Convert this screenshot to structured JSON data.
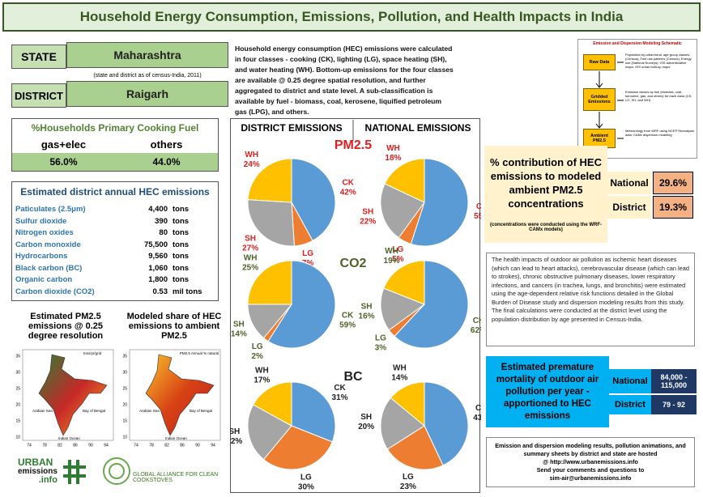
{
  "header": {
    "title": "Household Energy Consumption, Emissions, Pollution, and Health Impacts in India"
  },
  "location": {
    "state_label": "STATE",
    "state": "Maharashtra",
    "note": "(state and district as of census-India, 2011)",
    "district_label": "DISTRICT",
    "district": "Raigarh"
  },
  "description": "Household energy consumption (HEC) emissions were calculated in four classes - cooking (CK), lighting (LG), space heating (SH), and water heating (WH). Bottom-up emissions for the four classes  are available @ 0.25 degree spatial resolution, and further aggregated to district and state level. A sub-classification is available by fuel - biomass, coal, kerosene, liquified petroleum gas (LPG), and others.",
  "schematic": {
    "title": "Emission and Dispersion Modeling Schematic",
    "boxes": [
      "Raw Data",
      "Gridded Emissions",
      "Ambient PM2.5"
    ],
    "notes": [
      "Population by urban/rural, age group classes (Census); Fuel use patterns (Census); Energy use (National Surveys); GIS administrative maps; GIS urban built-up maps",
      "Emission factors by fuel (biomass, coal, kerosene, gas, and others) for each class (CK, LG, SH, and WH)",
      "Meteorology from WRF using NCEP Reanalysis data; CAMx dispersion modeling"
    ]
  },
  "cooking_fuel": {
    "title": "%Households Primary Cooking Fuel",
    "headers": [
      "gas+elec",
      "others"
    ],
    "values": [
      "56.0%",
      "44.0%"
    ]
  },
  "emissions": {
    "title": "Estimated district annual HEC emissions",
    "rows": [
      [
        "Paticulates (2.5μm)",
        "4,400",
        "tons"
      ],
      [
        "Sulfur dioxide",
        "390",
        "tons"
      ],
      [
        "Nitrogen oxides",
        "80",
        "tons"
      ],
      [
        "Carbon monoxide",
        "75,500",
        "tons"
      ],
      [
        "Hydrocarbons",
        "9,560",
        "tons"
      ],
      [
        "Black carbon (BC)",
        "1,060",
        "tons"
      ],
      [
        "Organic carbon",
        "1,800",
        "tons"
      ],
      [
        "Carbon dioxide (CO2)",
        "0.53",
        "mil tons"
      ]
    ]
  },
  "maps": {
    "pm_title": "Estimated PM2.5 emissions @ 0.25 degree resolution",
    "share_title": "Modeled share of HEC emissions to ambient PM2.5",
    "pm_unit": "tons/yr/grid",
    "share_unit": "PM2.5 Annual % natural",
    "seas": [
      "Arabian Sea",
      "Bay of Bengal",
      "Indian Ocean"
    ],
    "xticks": [
      "74",
      "78",
      "82",
      "86",
      "90",
      "94"
    ],
    "yticks": [
      "35",
      "30",
      "25",
      "20",
      "15",
      "10"
    ]
  },
  "logos": {
    "urban": "URBAN",
    "emissions": "emissions",
    ".info": ".info",
    "gacc": "GLOBAL ALLIANCE FOR CLEAN COOKSTOVES"
  },
  "pie_panel": {
    "district_header": "DISTRICT EMISSIONS",
    "national_header": "NATIONAL EMISSIONS",
    "rows": [
      "PM2.5",
      "CO2",
      "BC"
    ]
  },
  "chart_data": [
    {
      "type": "pie",
      "categories": [
        "CK",
        "LG",
        "SH",
        "WH"
      ],
      "values": [
        42,
        7,
        27,
        24
      ],
      "value_labels": [
        "42%",
        "7%",
        "27%",
        "24%"
      ],
      "colors": [
        "#5b9bd5",
        "#ed7d31",
        "#a5a5a5",
        "#ffc000"
      ],
      "label_color": "#e02020"
    },
    {
      "type": "pie",
      "categories": [
        "CK",
        "LG",
        "SH",
        "WH"
      ],
      "values": [
        55,
        5,
        22,
        18
      ],
      "value_labels": [
        "55%",
        "5%",
        "22%",
        "18%"
      ],
      "colors": [
        "#5b9bd5",
        "#ed7d31",
        "#a5a5a5",
        "#ffc000"
      ],
      "label_color": "#e02020"
    },
    {
      "type": "pie",
      "categories": [
        "CK",
        "LG",
        "SH",
        "WH"
      ],
      "values": [
        59,
        2,
        14,
        25
      ],
      "value_labels": [
        "59%",
        "2%",
        "14%",
        "25%"
      ],
      "colors": [
        "#5b9bd5",
        "#ed7d31",
        "#a5a5a5",
        "#ffc000"
      ],
      "label_color": "#4f6228"
    },
    {
      "type": "pie",
      "categories": [
        "CK",
        "LG",
        "SH",
        "WH"
      ],
      "values": [
        62,
        3,
        16,
        19
      ],
      "value_labels": [
        "62%",
        "3%",
        "16%",
        "19%"
      ],
      "colors": [
        "#5b9bd5",
        "#ed7d31",
        "#a5a5a5",
        "#ffc000"
      ],
      "label_color": "#4f6228"
    },
    {
      "type": "pie",
      "categories": [
        "CK",
        "LG",
        "SH",
        "WH"
      ],
      "values": [
        31,
        30,
        22,
        17
      ],
      "value_labels": [
        "31%",
        "30%",
        "22%",
        "17%"
      ],
      "colors": [
        "#5b9bd5",
        "#ed7d31",
        "#a5a5a5",
        "#ffc000"
      ],
      "label_color": "#222222"
    },
    {
      "type": "pie",
      "categories": [
        "CK",
        "LG",
        "SH",
        "WH"
      ],
      "values": [
        43,
        23,
        20,
        14
      ],
      "value_labels": [
        "43%",
        "23%",
        "20%",
        "14%"
      ],
      "colors": [
        "#5b9bd5",
        "#ed7d31",
        "#a5a5a5",
        "#ffc000"
      ],
      "label_color": "#222222"
    }
  ],
  "contribution": {
    "title": "% contribution of HEC emissions to modeled ambient PM2.5 concentrations",
    "note": "(concentrations were conducted using the WRF-CAMx models)",
    "rows": [
      [
        "National",
        "29.6%"
      ],
      [
        "District",
        "19.3%"
      ]
    ]
  },
  "health": "The health impacts of outdoor air pollution as ischemic heart diseases (which can lead to heart attacks), cerebrovascular disease (which can lead to strokes), chronic obstructive pulmonary diseases, lower respiratory infections, and cancers (in trachea, lungs, and bronchitis) were estimated using the age-dependent relative risk functions detailed in the Global Burden of Disease study and dispersion modeling results from this study. The final calculations were conducted at the district level using the population distribution by age presented in Census-India.",
  "mortality": {
    "title": "Estimated premature mortality of outdoor air pollution per year - apportioned to HEC emissions",
    "rows": [
      [
        "National",
        "84,000 - 115,000"
      ],
      [
        "District",
        "79 - 92"
      ]
    ]
  },
  "footer": [
    "Emission and dispersion modeling results, pollution animations, and summary sheets by district and state are hosted",
    "@ http://www.urbanemissions.info",
    "Send your comments and questions to",
    "sim-air@urbanemissions.info"
  ]
}
